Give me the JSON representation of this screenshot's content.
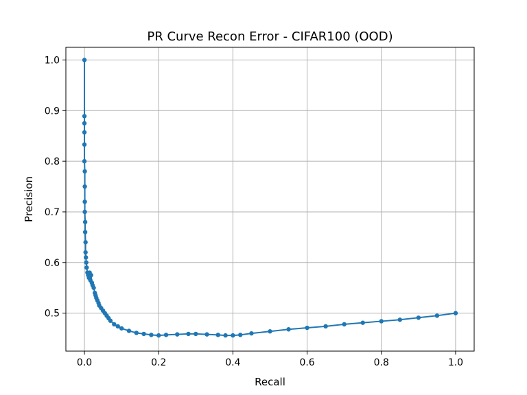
{
  "chart_data": {
    "type": "line",
    "title": "PR Curve Recon Error - CIFAR100 (OOD)",
    "xlabel": "Recall",
    "ylabel": "Precision",
    "xlim": [
      -0.05,
      1.05
    ],
    "ylim": [
      0.425,
      1.025
    ],
    "xticks": [
      0.0,
      0.2,
      0.4,
      0.6,
      0.8,
      1.0
    ],
    "xtick_labels": [
      "0.0",
      "0.2",
      "0.4",
      "0.6",
      "0.8",
      "1.0"
    ],
    "yticks": [
      0.5,
      0.6,
      0.7,
      0.8,
      0.9,
      1.0
    ],
    "ytick_labels": [
      "0.5",
      "0.6",
      "0.7",
      "0.8",
      "0.9",
      "1.0"
    ],
    "grid": true,
    "marker": "circle",
    "color": "#1f77b4",
    "series": [
      {
        "x": [
          0.0,
          0.0,
          0.0,
          0.0,
          0.0,
          0.0,
          0.001,
          0.001,
          0.001,
          0.001,
          0.002,
          0.002,
          0.003,
          0.003,
          0.004,
          0.005,
          0.006,
          0.008,
          0.01,
          0.012,
          0.014,
          0.016,
          0.018,
          0.02,
          0.022,
          0.025,
          0.028,
          0.03,
          0.032,
          0.035,
          0.038,
          0.04,
          0.045,
          0.05,
          0.055,
          0.06,
          0.065,
          0.07,
          0.08,
          0.09,
          0.1,
          0.12,
          0.14,
          0.16,
          0.18,
          0.2,
          0.22,
          0.25,
          0.28,
          0.3,
          0.33,
          0.36,
          0.38,
          0.4,
          0.42,
          0.45,
          0.5,
          0.55,
          0.6,
          0.65,
          0.7,
          0.75,
          0.8,
          0.85,
          0.9,
          0.95,
          1.0
        ],
        "y": [
          1.0,
          0.889,
          0.875,
          0.857,
          0.833,
          0.8,
          0.78,
          0.75,
          0.72,
          0.7,
          0.68,
          0.66,
          0.64,
          0.62,
          0.61,
          0.6,
          0.59,
          0.58,
          0.575,
          0.57,
          0.58,
          0.565,
          0.575,
          0.56,
          0.555,
          0.55,
          0.54,
          0.535,
          0.53,
          0.525,
          0.52,
          0.515,
          0.51,
          0.505,
          0.5,
          0.495,
          0.49,
          0.485,
          0.478,
          0.474,
          0.47,
          0.465,
          0.461,
          0.459,
          0.457,
          0.456,
          0.457,
          0.458,
          0.459,
          0.459,
          0.458,
          0.457,
          0.456,
          0.456,
          0.457,
          0.46,
          0.464,
          0.468,
          0.471,
          0.474,
          0.478,
          0.481,
          0.484,
          0.487,
          0.491,
          0.495,
          0.5
        ]
      }
    ]
  }
}
